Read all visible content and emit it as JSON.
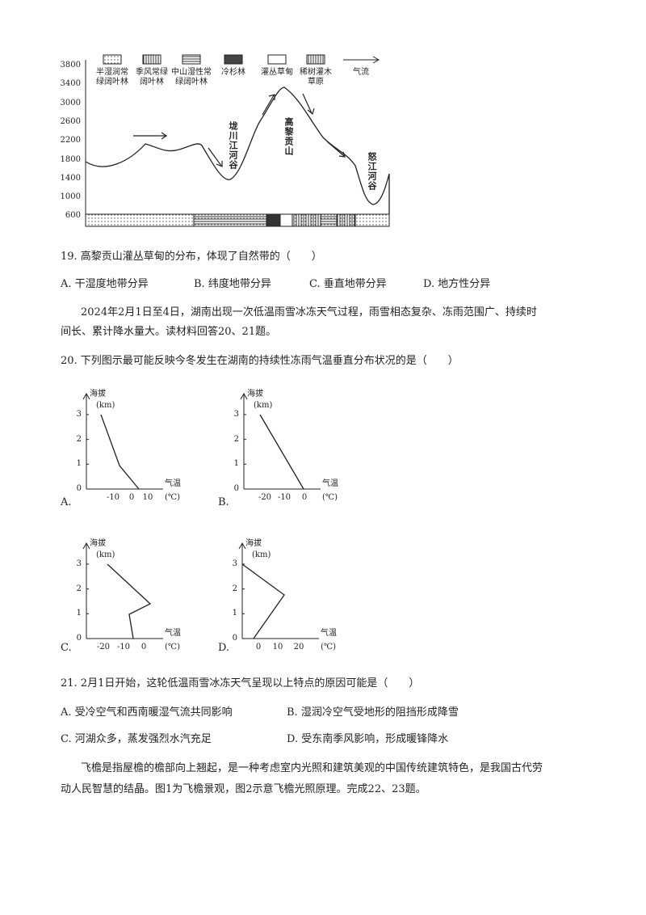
{
  "figure": {
    "legend": [
      [
        "半湿润常",
        "绿阔叶林"
      ],
      [
        "季风常绿",
        "阔叶林"
      ],
      [
        "中山湿性常",
        "绿阔叶林"
      ],
      [
        "冷杉林"
      ],
      [
        "灌丛草甸"
      ],
      [
        "稀树灌木",
        "草原"
      ],
      [
        "气流"
      ]
    ],
    "y_ticks": [
      "3800",
      "3400",
      "3000",
      "2600",
      "2200",
      "1800",
      "1400",
      "1000",
      "600"
    ],
    "labels": [
      "垅川江河谷",
      "高黎贡山",
      "怒江河谷"
    ]
  },
  "q19": {
    "stem": "19. 高黎贡山灌丛草甸的分布，体现了自然带的（　　）",
    "options": [
      "A. 干湿度地带分异",
      "B. 纬度地带分异",
      "C. 垂直地带分异",
      "D. 地方性分异"
    ]
  },
  "passage1": [
    "2024年2月1日至4日，湖南出现一次低温雨雪冰冻天气过程，雨雪相态复杂、冻雨范围广、持续时",
    "间长、累计降水量大。读材料回答20、21题。"
  ],
  "q20": {
    "stem": "20. 下列图示最可能反映今冬发生在湖南的持续性冻雨气温垂直分布状况的是（　　）",
    "charts": [
      {
        "option": "A.",
        "y_label": "海拔",
        "y_unit": "(km)",
        "y_ticks": [
          "0",
          "1",
          "2",
          "3"
        ],
        "x_ticks": [
          "-10",
          "0",
          "10"
        ],
        "x_label": "气温",
        "x_unit": "(℃)"
      },
      {
        "option": "B.",
        "y_label": "海拔",
        "y_unit": "(km)",
        "y_ticks": [
          "0",
          "1",
          "2",
          "3"
        ],
        "x_ticks": [
          "-20",
          "-10",
          "0"
        ],
        "x_label": "气温",
        "x_unit": "(℃)"
      },
      {
        "option": "C.",
        "y_label": "海拔",
        "y_unit": "(km)",
        "y_ticks": [
          "0",
          "1",
          "2",
          "3"
        ],
        "x_ticks": [
          "-20",
          "-10",
          "0"
        ],
        "x_label": "气温",
        "x_unit": "(℃)"
      },
      {
        "option": "D.",
        "y_label": "海拔",
        "y_unit": "(km)",
        "y_ticks": [
          "0",
          "1",
          "2",
          "3"
        ],
        "x_ticks": [
          "0",
          "10",
          "20"
        ],
        "x_label": "气温",
        "x_unit": "(℃)"
      }
    ]
  },
  "q21": {
    "stem": "21. 2月1日开始，这轮低温雨雪冰冻天气呈现以上特点的原因可能是（　　）",
    "options": [
      "A. 受冷空气和西南暖湿气流共同影响",
      "B. 湿润冷空气受地形的阻挡形成降雪",
      "C. 河湖众多，蒸发强烈水汽充足",
      "D. 受东南季风影响，形成暖锋降水"
    ]
  },
  "passage2": [
    "飞檐是指屋檐的檐部向上翘起，是一种考虑室内光照和建筑美观的中国传统建筑特色，是我国古代劳",
    "动人民智慧的结晶。图1为飞檐景观，图2示意飞檐光照原理。完成22、23题。"
  ]
}
